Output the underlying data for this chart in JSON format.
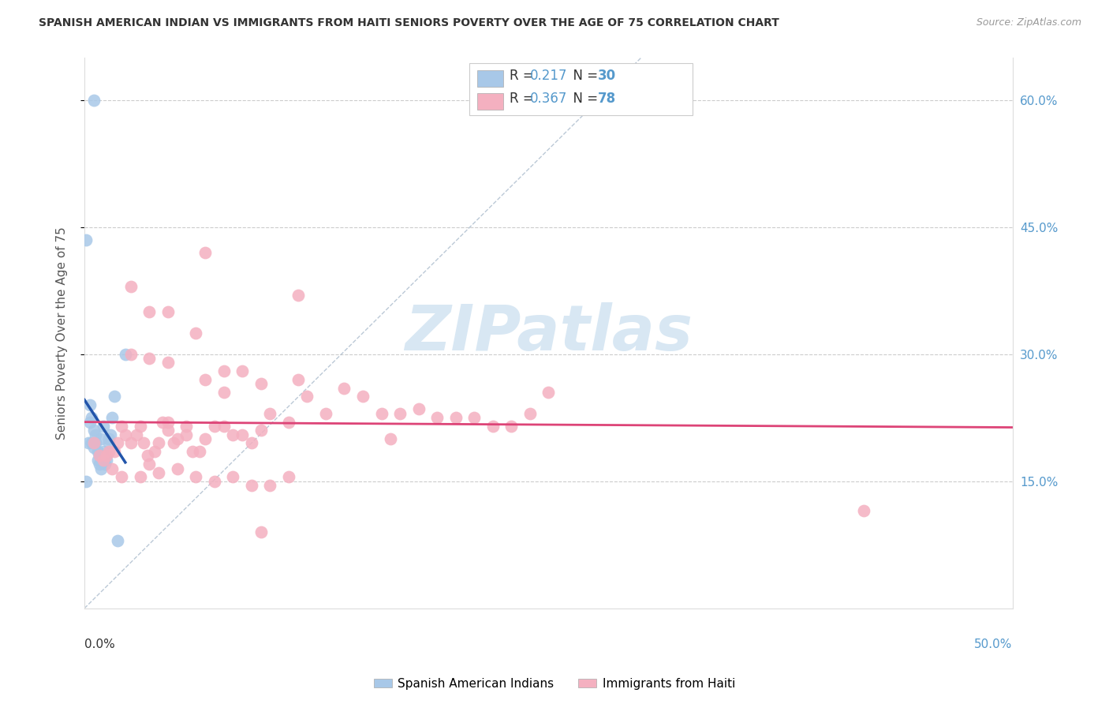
{
  "title": "SPANISH AMERICAN INDIAN VS IMMIGRANTS FROM HAITI SENIORS POVERTY OVER THE AGE OF 75 CORRELATION CHART",
  "source": "Source: ZipAtlas.com",
  "ylabel": "Seniors Poverty Over the Age of 75",
  "xlim": [
    0.0,
    0.5
  ],
  "ylim": [
    0.0,
    0.65
  ],
  "ytick_vals": [
    0.15,
    0.3,
    0.45,
    0.6
  ],
  "ytick_labels": [
    "15.0%",
    "30.0%",
    "45.0%",
    "60.0%"
  ],
  "xtick_left_label": "0.0%",
  "xtick_right_label": "50.0%",
  "blue_color": "#a8c8e8",
  "blue_edge_color": "#6699cc",
  "pink_color": "#f4b0c0",
  "pink_edge_color": "#e87090",
  "blue_line_color": "#2255aa",
  "pink_line_color": "#dd4477",
  "tick_label_color": "#5599cc",
  "watermark": "ZIPatlas",
  "legend_R1": "0.217",
  "legend_N1": "30",
  "legend_R2": "0.367",
  "legend_N2": "78",
  "blue_x": [
    0.005,
    0.001,
    0.002,
    0.003,
    0.003,
    0.004,
    0.004,
    0.005,
    0.005,
    0.006,
    0.006,
    0.007,
    0.007,
    0.008,
    0.008,
    0.009,
    0.009,
    0.01,
    0.01,
    0.011,
    0.011,
    0.012,
    0.013,
    0.014,
    0.015,
    0.016,
    0.018,
    0.022,
    0.001,
    0.013
  ],
  "blue_y": [
    0.6,
    0.435,
    0.195,
    0.22,
    0.24,
    0.195,
    0.225,
    0.21,
    0.19,
    0.205,
    0.195,
    0.185,
    0.175,
    0.18,
    0.17,
    0.165,
    0.2,
    0.215,
    0.185,
    0.18,
    0.17,
    0.175,
    0.195,
    0.205,
    0.225,
    0.25,
    0.08,
    0.3,
    0.15,
    0.2
  ],
  "pink_x": [
    0.005,
    0.008,
    0.01,
    0.012,
    0.013,
    0.015,
    0.016,
    0.018,
    0.02,
    0.022,
    0.025,
    0.028,
    0.03,
    0.032,
    0.034,
    0.035,
    0.038,
    0.04,
    0.042,
    0.045,
    0.048,
    0.05,
    0.055,
    0.058,
    0.062,
    0.065,
    0.07,
    0.075,
    0.08,
    0.085,
    0.09,
    0.095,
    0.1,
    0.11,
    0.115,
    0.12,
    0.13,
    0.14,
    0.15,
    0.16,
    0.165,
    0.17,
    0.18,
    0.19,
    0.2,
    0.21,
    0.22,
    0.23,
    0.24,
    0.25,
    0.02,
    0.03,
    0.04,
    0.05,
    0.06,
    0.07,
    0.08,
    0.09,
    0.1,
    0.11,
    0.025,
    0.035,
    0.045,
    0.06,
    0.075,
    0.025,
    0.035,
    0.045,
    0.055,
    0.065,
    0.075,
    0.085,
    0.095,
    0.115,
    0.42,
    0.095,
    0.065,
    0.045
  ],
  "pink_y": [
    0.195,
    0.18,
    0.175,
    0.18,
    0.185,
    0.165,
    0.185,
    0.195,
    0.215,
    0.205,
    0.195,
    0.205,
    0.215,
    0.195,
    0.18,
    0.17,
    0.185,
    0.195,
    0.22,
    0.21,
    0.195,
    0.2,
    0.205,
    0.185,
    0.185,
    0.2,
    0.215,
    0.215,
    0.205,
    0.205,
    0.195,
    0.21,
    0.23,
    0.22,
    0.27,
    0.25,
    0.23,
    0.26,
    0.25,
    0.23,
    0.2,
    0.23,
    0.235,
    0.225,
    0.225,
    0.225,
    0.215,
    0.215,
    0.23,
    0.255,
    0.155,
    0.155,
    0.16,
    0.165,
    0.155,
    0.15,
    0.155,
    0.145,
    0.145,
    0.155,
    0.38,
    0.35,
    0.29,
    0.325,
    0.28,
    0.3,
    0.295,
    0.22,
    0.215,
    0.27,
    0.255,
    0.28,
    0.265,
    0.37,
    0.115,
    0.09,
    0.42,
    0.35
  ]
}
